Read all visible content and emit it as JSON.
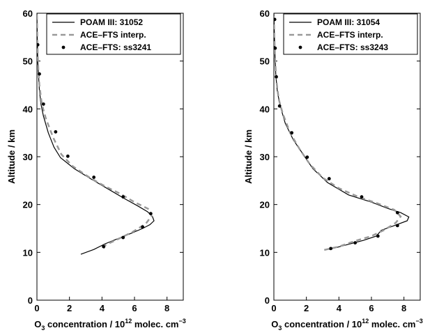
{
  "chart_data": [
    {
      "type": "line",
      "xlabel": "O3 concentration / 10^12 molec. cm^-3",
      "ylabel": "Altitude / km",
      "xlim": [
        0,
        9
      ],
      "ylim": [
        0,
        60
      ],
      "xticks": [
        0,
        2,
        4,
        6,
        8
      ],
      "yticks": [
        0,
        10,
        20,
        30,
        40,
        50,
        60
      ],
      "legend": {
        "placement": "top-right"
      },
      "series": [
        {
          "name": "POAM III: 31052",
          "style": "solid",
          "color": "#000000",
          "points": [
            [
              2.7,
              9.6
            ],
            [
              3.5,
              10.6
            ],
            [
              4.2,
              11.8
            ],
            [
              5.0,
              12.9
            ],
            [
              5.8,
              14.0
            ],
            [
              6.5,
              15.0
            ],
            [
              6.95,
              15.8
            ],
            [
              7.2,
              16.6
            ],
            [
              7.1,
              17.5
            ],
            [
              6.8,
              18.5
            ],
            [
              6.2,
              19.7
            ],
            [
              5.4,
              21.2
            ],
            [
              4.4,
              23.2
            ],
            [
              3.3,
              25.4
            ],
            [
              2.3,
              27.5
            ],
            [
              1.45,
              29.8
            ],
            [
              1.05,
              32.0
            ],
            [
              0.7,
              35.0
            ],
            [
              0.4,
              38.5
            ],
            [
              0.25,
              41.0
            ],
            [
              0.15,
              44.0
            ],
            [
              0.1,
              47.0
            ],
            [
              0.05,
              50.0
            ],
            [
              0.02,
              55.0
            ],
            [
              0.0,
              60.0
            ]
          ]
        },
        {
          "name": "ACE–FTS interp.",
          "style": "dashed",
          "color": "#999999",
          "points": [
            [
              4.1,
              10.8
            ],
            [
              4.2,
              11.5
            ],
            [
              5.0,
              12.8
            ],
            [
              5.9,
              14.3
            ],
            [
              6.7,
              16.0
            ],
            [
              7.05,
              17.6
            ],
            [
              6.9,
              19.0
            ],
            [
              6.0,
              20.5
            ],
            [
              5.1,
              22.3
            ],
            [
              4.2,
              23.8
            ],
            [
              3.3,
              25.5
            ],
            [
              2.2,
              28.0
            ],
            [
              1.5,
              30.5
            ],
            [
              1.0,
              34.0
            ],
            [
              0.55,
              38.0
            ],
            [
              0.3,
              41.0
            ],
            [
              0.15,
              45.0
            ],
            [
              0.1,
              47.5
            ],
            [
              0.05,
              51.0
            ],
            [
              0.02,
              55.0
            ],
            [
              0.0,
              60.0
            ]
          ]
        },
        {
          "name": "ACE–FTS: ss3241",
          "style": "dots",
          "color": "#000000",
          "points": [
            [
              4.1,
              11.2
            ],
            [
              5.3,
              13.1
            ],
            [
              6.5,
              15.3
            ],
            [
              7.0,
              18.1
            ],
            [
              5.3,
              21.6
            ],
            [
              3.5,
              25.7
            ],
            [
              1.9,
              30.1
            ],
            [
              1.15,
              35.2
            ],
            [
              0.4,
              41.0
            ],
            [
              0.15,
              47.3
            ],
            [
              0.05,
              53.4
            ]
          ]
        }
      ]
    },
    {
      "type": "line",
      "xlabel": "O3 concentration / 10^12 molec. cm^-3",
      "ylabel": "Altitude / km",
      "xlim": [
        0,
        9
      ],
      "ylim": [
        0,
        60
      ],
      "xticks": [
        0,
        2,
        4,
        6,
        8
      ],
      "yticks": [
        0,
        10,
        20,
        30,
        40,
        50,
        60
      ],
      "legend": {
        "placement": "top-right"
      },
      "series": [
        {
          "name": "POAM III: 31054",
          "style": "solid",
          "color": "#000000",
          "points": [
            [
              3.4,
              10.6
            ],
            [
              4.5,
              11.6
            ],
            [
              5.5,
              12.5
            ],
            [
              6.3,
              13.4
            ],
            [
              6.6,
              14.6
            ],
            [
              7.4,
              15.6
            ],
            [
              8.2,
              16.6
            ],
            [
              8.3,
              17.4
            ],
            [
              7.8,
              18.3
            ],
            [
              7.0,
              19.2
            ],
            [
              6.0,
              20.5
            ],
            [
              4.6,
              22.0
            ],
            [
              3.3,
              24.6
            ],
            [
              2.4,
              27.5
            ],
            [
              1.8,
              30.5
            ],
            [
              1.2,
              33.5
            ],
            [
              0.7,
              37.0
            ],
            [
              0.4,
              40.5
            ],
            [
              0.22,
              43.5
            ],
            [
              0.12,
              47.0
            ],
            [
              0.06,
              52.0
            ],
            [
              0.02,
              57.0
            ],
            [
              0.0,
              60.0
            ]
          ]
        },
        {
          "name": "ACE–FTS interp.",
          "style": "dashed",
          "color": "#999999",
          "points": [
            [
              3.1,
              10.5
            ],
            [
              4.0,
              11.2
            ],
            [
              5.0,
              12.4
            ],
            [
              6.0,
              13.4
            ],
            [
              6.8,
              14.7
            ],
            [
              7.5,
              16.2
            ],
            [
              7.8,
              17.5
            ],
            [
              7.4,
              18.9
            ],
            [
              6.4,
              20.2
            ],
            [
              5.2,
              21.6
            ],
            [
              4.0,
              23.4
            ],
            [
              3.0,
              25.6
            ],
            [
              2.2,
              28.5
            ],
            [
              1.6,
              31.5
            ],
            [
              1.0,
              35.0
            ],
            [
              0.55,
              39.0
            ],
            [
              0.3,
              42.0
            ],
            [
              0.15,
              46.0
            ],
            [
              0.08,
              50.0
            ],
            [
              0.03,
              55.0
            ],
            [
              0.0,
              60.0
            ]
          ]
        },
        {
          "name": "ACE–FTS: ss3243",
          "style": "dots",
          "color": "#000000",
          "points": [
            [
              3.5,
              10.8
            ],
            [
              5.0,
              12.0
            ],
            [
              6.4,
              13.4
            ],
            [
              7.6,
              15.6
            ],
            [
              7.6,
              18.3
            ],
            [
              5.4,
              21.6
            ],
            [
              3.4,
              25.4
            ],
            [
              2.05,
              29.9
            ],
            [
              1.1,
              35.0
            ],
            [
              0.35,
              40.6
            ],
            [
              0.15,
              46.7
            ],
            [
              0.08,
              52.7
            ],
            [
              0.05,
              58.7
            ]
          ]
        }
      ]
    }
  ],
  "labels": {
    "ylabel": "Altitude / km",
    "xlabel_prefix": "O",
    "xlabel_sub": "3",
    "xlabel_middle": " concentration / 10",
    "xlabel_sup1": "12",
    "xlabel_end": " molec. cm",
    "xlabel_sup2": "−3"
  }
}
